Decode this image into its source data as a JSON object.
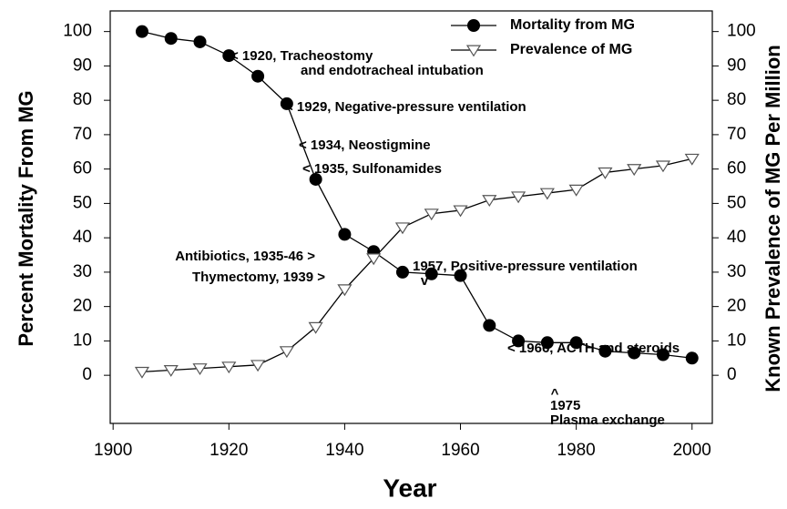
{
  "chart_data": {
    "type": "line",
    "x_label": "Year",
    "y_label": "Percent Mortality From MG",
    "y2_label": "Known Prevalence of MG Per Million",
    "x": [
      1905,
      1910,
      1915,
      1920,
      1925,
      1930,
      1935,
      1940,
      1945,
      1950,
      1955,
      1960,
      1965,
      1970,
      1975,
      1980,
      1985,
      1990,
      1995,
      2000
    ],
    "series": [
      {
        "name": "Mortality from MG",
        "color": "#000000",
        "marker": "circle",
        "axis": "y",
        "values": [
          100,
          98,
          97,
          93,
          87,
          79,
          57,
          41,
          36,
          30,
          29.5,
          29,
          14.5,
          10,
          9.5,
          9.5,
          7,
          6.5,
          6,
          5
        ]
      },
      {
        "name": "Prevalence of MG",
        "color": "#000000",
        "marker": "triangle-down",
        "axis": "y2",
        "values": [
          1,
          1.5,
          2,
          2.5,
          3,
          7,
          14,
          25,
          34,
          43,
          47,
          48,
          51,
          52,
          53,
          54,
          59,
          60,
          61,
          63
        ]
      }
    ],
    "xlim": [
      1899.5,
      2003.5
    ],
    "xticks": [
      1900,
      1920,
      1940,
      1960,
      1980,
      2000
    ],
    "ylim": [
      -14,
      106
    ],
    "yticks": [
      0,
      10,
      20,
      30,
      40,
      50,
      60,
      70,
      80,
      90,
      100
    ],
    "y2lim": [
      -14,
      106
    ],
    "y2ticks": [
      0,
      10,
      20,
      30,
      40,
      50,
      60,
      70,
      80,
      90,
      100
    ],
    "legend": "upper right",
    "annotations": [
      [
        "< 1920, Tracheostomy",
        "and endotracheal intubation"
      ],
      [
        "< 1929, Negative-pressure ventilation"
      ],
      [
        "< 1934, Neostigmine"
      ],
      [
        "< 1935, Sulfonamides"
      ],
      [
        "Antibiotics, 1935-46 >"
      ],
      [
        "Thymectomy, 1939 >"
      ],
      [
        "1957, Positive-pressure ventilation",
        "v"
      ],
      [
        "< 1966, ACTH and steroids"
      ],
      [
        "^",
        "1975",
        "Plasma exchange"
      ]
    ]
  }
}
